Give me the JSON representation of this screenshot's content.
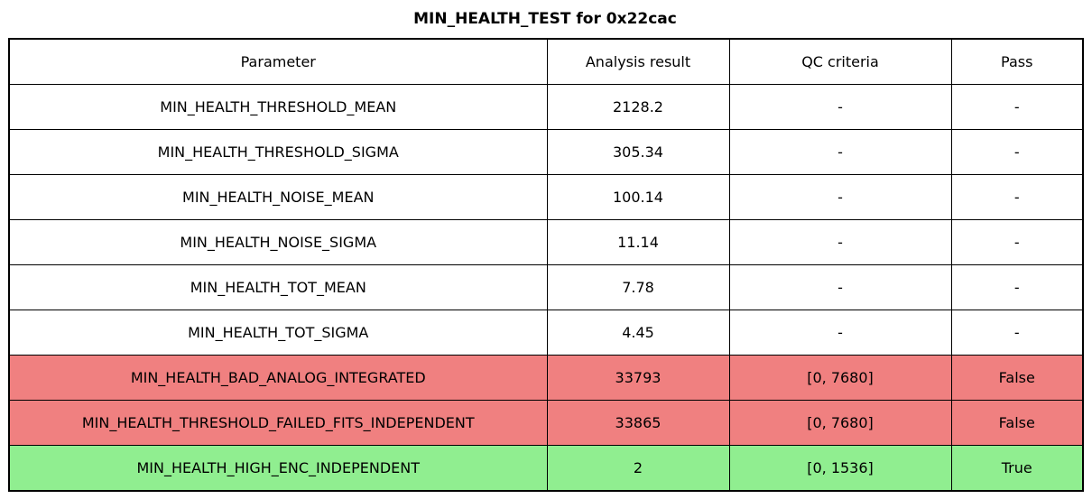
{
  "chart_data": {
    "type": "table",
    "title": "MIN_HEALTH_TEST for 0x22cac",
    "columns": [
      "Parameter",
      "Analysis result",
      "QC criteria",
      "Pass"
    ],
    "rows": [
      [
        "MIN_HEALTH_THRESHOLD_MEAN",
        "2128.2",
        "-",
        "-"
      ],
      [
        "MIN_HEALTH_THRESHOLD_SIGMA",
        "305.34",
        "-",
        "-"
      ],
      [
        "MIN_HEALTH_NOISE_MEAN",
        "100.14",
        "-",
        "-"
      ],
      [
        "MIN_HEALTH_NOISE_SIGMA",
        "11.14",
        "-",
        "-"
      ],
      [
        "MIN_HEALTH_TOT_MEAN",
        "7.78",
        "-",
        "-"
      ],
      [
        "MIN_HEALTH_TOT_SIGMA",
        "4.45",
        "-",
        "-"
      ],
      [
        "MIN_HEALTH_BAD_ANALOG_INTEGRATED",
        "33793",
        "[0, 7680]",
        "False"
      ],
      [
        "MIN_HEALTH_THRESHOLD_FAILED_FITS_INDEPENDENT",
        "33865",
        "[0, 7680]",
        "False"
      ],
      [
        "MIN_HEALTH_HIGH_ENC_INDEPENDENT",
        "2",
        "[0, 1536]",
        "True"
      ]
    ],
    "row_highlight": [
      "none",
      "none",
      "none",
      "none",
      "none",
      "none",
      "fail",
      "fail",
      "pass"
    ],
    "layout": {
      "grid": true,
      "header_row": true,
      "title_position": "top-center"
    }
  },
  "colors": {
    "fail_row_bg": "#f08080",
    "pass_row_bg": "#90ee90",
    "default_row_bg": "#ffffff",
    "border": "#000000",
    "text": "#000000"
  }
}
